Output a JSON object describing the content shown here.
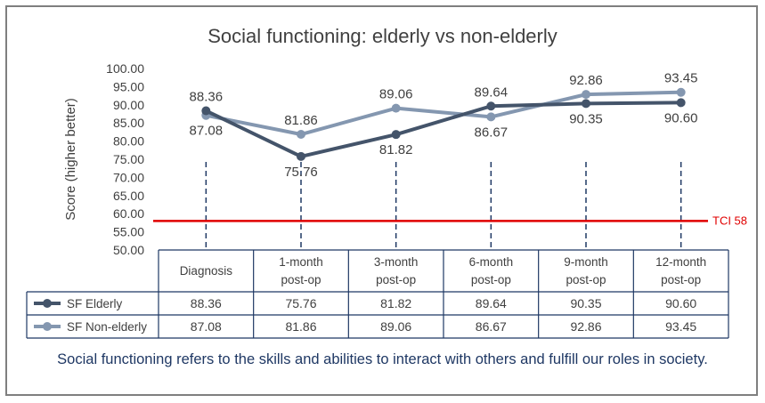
{
  "chart_data": {
    "type": "line",
    "title": "Social functioning: elderly vs non-elderly",
    "ylabel": "Score (higher better)",
    "ylim": [
      50,
      100
    ],
    "ytick_step": 5,
    "categories": [
      [
        "Diagnosis"
      ],
      [
        "1-month",
        "post-op"
      ],
      [
        "3-month",
        "post-op"
      ],
      [
        "6-month",
        "post-op"
      ],
      [
        "9-month",
        "post-op"
      ],
      [
        "12-month",
        "post-op"
      ]
    ],
    "series": [
      {
        "name": "SF Elderly",
        "color": "#44546a",
        "values": [
          88.36,
          75.76,
          81.82,
          89.64,
          90.35,
          90.6
        ],
        "value_labels": [
          "88.36",
          "75.76",
          "81.82",
          "89.64",
          "90.35",
          "90.60"
        ]
      },
      {
        "name": "SF Non-elderly",
        "color": "#8497b0",
        "values": [
          87.08,
          81.86,
          89.06,
          86.67,
          92.86,
          93.45
        ],
        "value_labels": [
          "87.08",
          "81.86",
          "89.06",
          "86.67",
          "92.86",
          "93.45"
        ]
      }
    ],
    "reference_line": {
      "label": "TCI 58",
      "value": 58,
      "color": "#e00000"
    },
    "grid": false,
    "legend": "data-table"
  },
  "footnote": "Social functioning refers to the skills and abilities to interact with others and fulfill our roles in society."
}
